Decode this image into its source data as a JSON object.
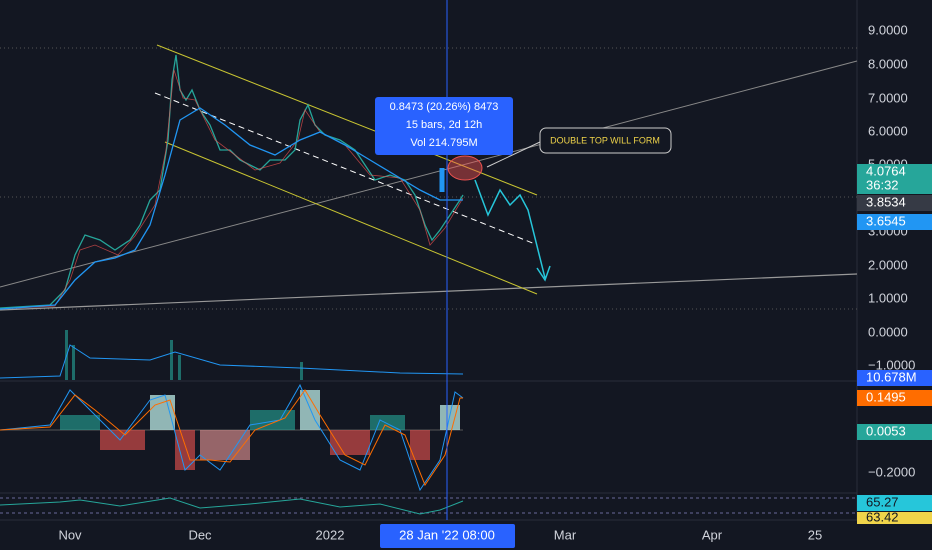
{
  "price_axis": [
    "9.0000",
    "8.0000",
    "7.0000",
    "6.0000",
    "5.0000",
    "3.0000",
    "2.0000",
    "1.0000",
    "0.0000",
    "−1.0000"
  ],
  "macd_axis": [
    "−0.2000"
  ],
  "badges": [
    {
      "label": "4.0764",
      "countdown": "36:32"
    },
    {
      "label": "3.8534"
    },
    {
      "label": "3.6545"
    },
    {
      "label": "10.678M"
    },
    {
      "label": "0.1495"
    },
    {
      "label": "0.0053"
    },
    {
      "label": "65.27"
    },
    {
      "label": "63.42"
    }
  ],
  "tooltip": [
    "0.8473 (20.26%) 8473",
    "15 bars, 2d 12h",
    "Vol 214.795M"
  ],
  "annotation": "DOUBLE TOP WILL FORM",
  "time_axis": [
    "Nov",
    "Dec",
    "2022",
    "Mar",
    "Apr",
    "25"
  ],
  "crosshair_label": "28 Jan '22  08:00"
}
